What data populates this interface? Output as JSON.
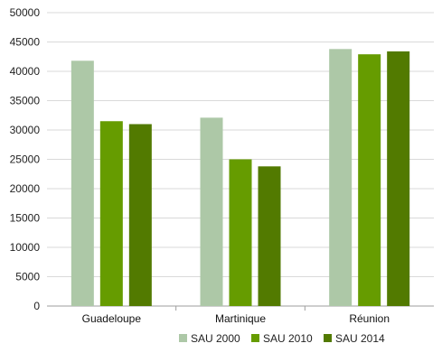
{
  "chart_data": {
    "type": "bar",
    "categories": [
      "Guadeloupe",
      "Martinique",
      "Réunion"
    ],
    "series": [
      {
        "name": "SAU 2000",
        "color": "#adc8a7",
        "values": [
          41800,
          32100,
          43800
        ]
      },
      {
        "name": "SAU 2010",
        "color": "#669c00",
        "values": [
          31500,
          25000,
          42900
        ]
      },
      {
        "name": "SAU 2014",
        "color": "#527a00",
        "values": [
          31000,
          23800,
          43400
        ]
      }
    ],
    "y_ticks": [
      "0",
      "5000",
      "10000",
      "15000",
      "20000",
      "25000",
      "30000",
      "35000",
      "40000",
      "45000",
      "50000"
    ],
    "ylim": [
      0,
      50000
    ],
    "grid": true,
    "legend_position": "bottom-right",
    "title": "",
    "xlabel": "",
    "ylabel": ""
  }
}
